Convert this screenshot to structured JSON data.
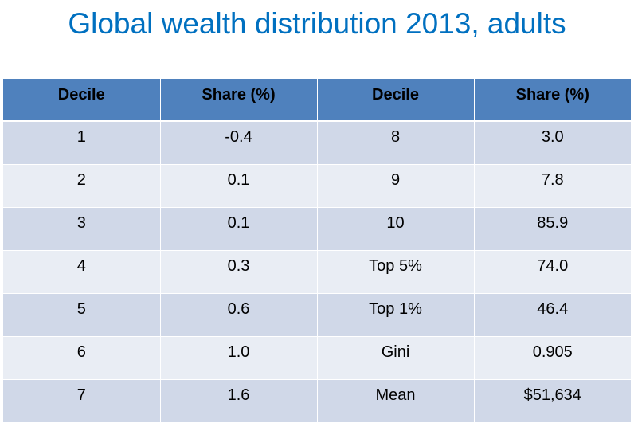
{
  "title": "Global wealth distribution 2013, adults",
  "table": {
    "headers": [
      "Decile",
      "Share (%)",
      "Decile",
      "Share (%)"
    ],
    "rows": [
      [
        "1",
        "-0.4",
        "8",
        "3.0"
      ],
      [
        "2",
        "0.1",
        "9",
        "7.8"
      ],
      [
        "3",
        "0.1",
        "10",
        "85.9"
      ],
      [
        "4",
        "0.3",
        "Top 5%",
        "74.0"
      ],
      [
        "5",
        "0.6",
        "Top 1%",
        "46.4"
      ],
      [
        "6",
        "1.0",
        "Gini",
        "0.905"
      ],
      [
        "7",
        "1.6",
        "Mean",
        "$51,634"
      ]
    ]
  },
  "colors": {
    "title": "#0070c0",
    "header_fill": "#4f81bd",
    "row_fill_odd": "#d0d8e8",
    "row_fill_even": "#e9edf4"
  }
}
